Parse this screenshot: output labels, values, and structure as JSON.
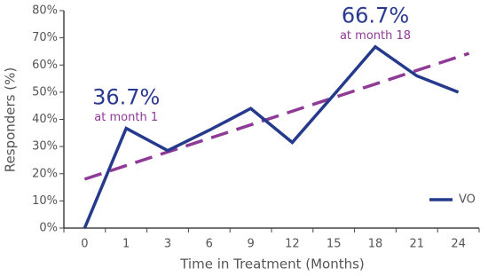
{
  "chart_data": {
    "type": "line",
    "x_label": "Time in Treatment (Months)",
    "y_label": "Responders (%)",
    "categories": [
      0,
      1,
      3,
      6,
      9,
      12,
      15,
      18,
      21,
      24
    ],
    "series": [
      {
        "name": "VO",
        "color": "#253a8c",
        "values": [
          0,
          36.7,
          28.5,
          36,
          44,
          31.5,
          49,
          66.7,
          56,
          50
        ]
      }
    ],
    "trendline": {
      "color": "#8e3a96",
      "values": [
        18,
        63
      ]
    },
    "annotations": [
      {
        "x": 1,
        "text": "36.7%",
        "subtext": "at month 1"
      },
      {
        "x": 18,
        "text": "66.7%",
        "subtext": "at month 18"
      }
    ],
    "ylim": [
      0,
      80
    ],
    "yticks": [
      {
        "value": 0,
        "label": "0%"
      },
      {
        "value": 10,
        "label": "10%"
      },
      {
        "value": 20,
        "label": "20%"
      },
      {
        "value": 30,
        "label": "30%"
      },
      {
        "value": 40,
        "label": "40%"
      },
      {
        "value": 50,
        "label": "50%"
      },
      {
        "value": 60,
        "label": "60%"
      },
      {
        "value": 70,
        "label": "70%"
      },
      {
        "value": 80,
        "label": "80%"
      }
    ],
    "legend": "bottom-right"
  }
}
